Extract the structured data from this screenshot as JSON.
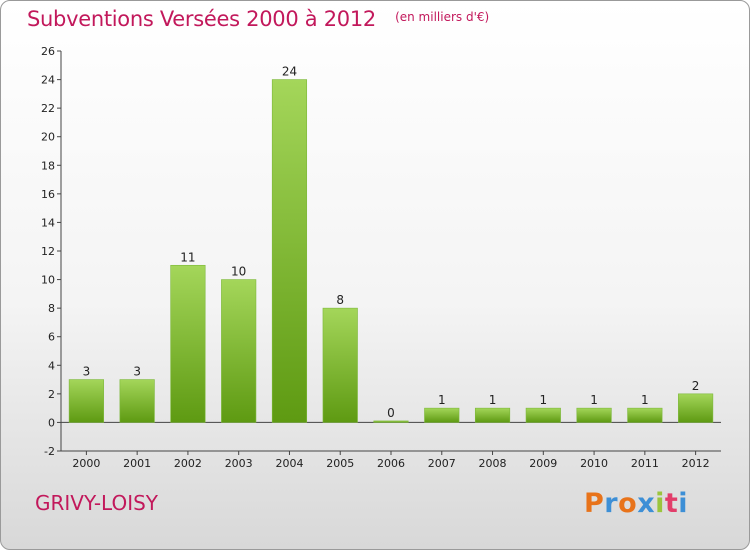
{
  "chart_data": {
    "type": "bar",
    "title": "Subventions Versées 2000 à 2012",
    "subtitle": "(en milliers d'€)",
    "categories": [
      "2000",
      "2001",
      "2002",
      "2003",
      "2004",
      "2005",
      "2006",
      "2007",
      "2008",
      "2009",
      "2010",
      "2011",
      "2012"
    ],
    "values": [
      3,
      3,
      11,
      10,
      24,
      8,
      0,
      1,
      1,
      1,
      1,
      1,
      2
    ],
    "ylim": [
      -2,
      26
    ],
    "yticks": [
      -2,
      0,
      2,
      4,
      6,
      8,
      10,
      12,
      14,
      16,
      18,
      20,
      22,
      24,
      26
    ],
    "grid": false,
    "bar_color_top": "#a4d65a",
    "bar_color_bottom": "#5e9a12"
  },
  "commune": "GRIVY-LOISY",
  "logo": {
    "letters": [
      "P",
      "r",
      "o",
      "x",
      "i",
      "t",
      "i"
    ],
    "colors": [
      "#e8731a",
      "#3d8fd6",
      "#e8731a",
      "#3d8fd6",
      "#9bc53d",
      "#e23d6a",
      "#3d8fd6"
    ]
  }
}
